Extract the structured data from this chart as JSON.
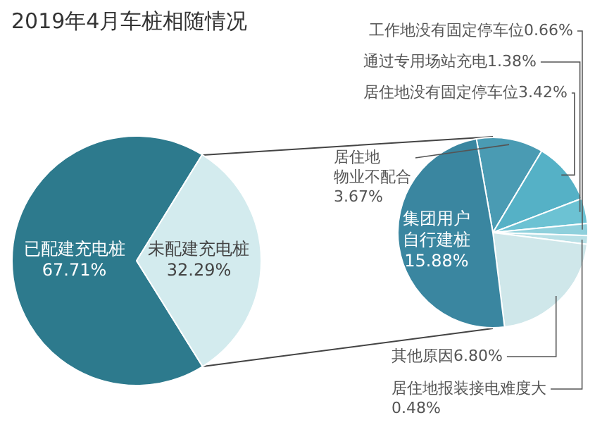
{
  "chart_data": [
    {
      "type": "pie",
      "title": "2019年4月车桩相随情况",
      "categories": [
        "已配建充电桩",
        "未配建充电桩"
      ],
      "values": [
        67.71,
        32.29
      ],
      "colors": [
        "#2d7a8d",
        "#d3ebee"
      ],
      "value_labels": [
        "67.71%",
        "32.29%"
      ]
    },
    {
      "type": "pie",
      "categories": [
        "居住地物业不配合",
        "居住地没有固定停车位",
        "通过专用场站充电",
        "工作地没有固定停车位",
        "居住地报装接电难度大",
        "其他原因",
        "集团用户自行建桩"
      ],
      "values": [
        3.67,
        3.42,
        1.38,
        0.66,
        0.48,
        6.8,
        15.88
      ],
      "colors": [
        "#4a9bb3",
        "#55b1c6",
        "#6cc2d3",
        "#8fd0dc",
        "#b9e0e6",
        "#cfe7ea",
        "#3a86a0"
      ],
      "value_labels": [
        "3.67%",
        "3.42%",
        "1.38%",
        "0.66%",
        "0.48%",
        "6.80%",
        "15.88%"
      ]
    }
  ]
}
